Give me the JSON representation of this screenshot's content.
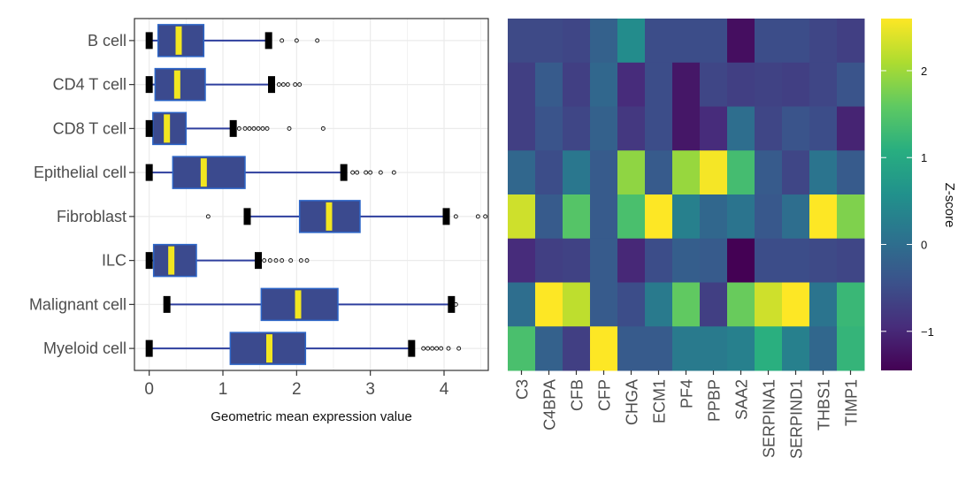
{
  "chart_data": [
    {
      "type": "boxplot",
      "orientation": "horizontal",
      "title": "",
      "xlabel": "Geometric mean expression value",
      "ylabel": "",
      "xlim": [
        -0.2,
        4.6
      ],
      "xticks": [
        0,
        1,
        2,
        3,
        4
      ],
      "categories": [
        "B cell",
        "CD4 T cell",
        "CD8 T cell",
        "Epithelial cell",
        "Fibroblast",
        "ILC",
        "Malignant cell",
        "Myeloid cell"
      ],
      "boxes": [
        {
          "category": "B cell",
          "whisker_low": 0.0,
          "q1": 0.12,
          "median": 0.4,
          "q3": 0.74,
          "whisker_high": 1.62,
          "outliers": [
            1.8,
            2.0,
            2.28
          ]
        },
        {
          "category": "CD4 T cell",
          "whisker_low": 0.0,
          "q1": 0.08,
          "median": 0.38,
          "q3": 0.76,
          "whisker_high": 1.66,
          "outliers": [
            1.76,
            1.82,
            1.88,
            1.98,
            2.04
          ]
        },
        {
          "category": "CD8 T cell",
          "whisker_low": 0.0,
          "q1": 0.05,
          "median": 0.24,
          "q3": 0.5,
          "whisker_high": 1.14,
          "outliers": [
            1.22,
            1.3,
            1.36,
            1.42,
            1.48,
            1.54,
            1.6,
            1.9,
            2.36
          ]
        },
        {
          "category": "Epithelial cell",
          "whisker_low": 0.0,
          "q1": 0.32,
          "median": 0.74,
          "q3": 1.3,
          "whisker_high": 2.64,
          "outliers": [
            2.76,
            2.82,
            2.94,
            3.0,
            3.14,
            3.32
          ]
        },
        {
          "category": "Fibroblast",
          "whisker_low": 1.33,
          "q1": 2.04,
          "median": 2.44,
          "q3": 2.86,
          "whisker_high": 4.03,
          "outliers": [
            0.8,
            4.16,
            4.46,
            4.56
          ]
        },
        {
          "category": "ILC",
          "whisker_low": 0.0,
          "q1": 0.06,
          "median": 0.3,
          "q3": 0.64,
          "whisker_high": 1.48,
          "outliers": [
            1.56,
            1.64,
            1.72,
            1.8,
            1.92,
            2.06,
            2.14
          ]
        },
        {
          "category": "Malignant cell",
          "whisker_low": 0.24,
          "q1": 1.52,
          "median": 2.02,
          "q3": 2.56,
          "whisker_high": 4.1,
          "outliers": [
            4.16
          ]
        },
        {
          "category": "Myeloid cell",
          "whisker_low": 0.0,
          "q1": 1.1,
          "median": 1.63,
          "q3": 2.12,
          "whisker_high": 3.56,
          "outliers": [
            3.72,
            3.78,
            3.84,
            3.9,
            3.96,
            4.06,
            4.2
          ]
        }
      ],
      "colors": {
        "box_fill": "#3b4a8e",
        "box_stroke": "#2c66c8",
        "median": "#f2e620",
        "whisker": "#2e3f9e",
        "cap": "#000000",
        "grid": "#ebebeb"
      }
    },
    {
      "type": "heatmap",
      "title": "",
      "rows": [
        "B cell",
        "CD4 T cell",
        "CD8 T cell",
        "Epithelial cell",
        "Fibroblast",
        "ILC",
        "Malignant cell",
        "Myeloid cell"
      ],
      "columns": [
        "C3",
        "C4BPA",
        "CFB",
        "CFP",
        "CHGA",
        "ECM1",
        "PF4",
        "PPBP",
        "SAA2",
        "SERPINA1",
        "SERPIND1",
        "THBS1",
        "TIMP1"
      ],
      "values": [
        [
          -0.55,
          -0.55,
          -0.6,
          -0.2,
          0.5,
          -0.5,
          -0.5,
          -0.5,
          -1.3,
          -0.5,
          -0.5,
          -0.6,
          -0.7
        ],
        [
          -0.7,
          -0.3,
          -0.7,
          -0.1,
          -0.95,
          -0.5,
          -1.2,
          -0.6,
          -0.7,
          -0.65,
          -0.7,
          -0.6,
          -0.4
        ],
        [
          -0.7,
          -0.4,
          -0.6,
          -0.2,
          -0.8,
          -0.5,
          -1.2,
          -0.95,
          0.0,
          -0.6,
          -0.4,
          -0.5,
          -1.05
        ],
        [
          -0.1,
          -0.5,
          0.15,
          -0.3,
          1.9,
          -0.3,
          1.95,
          2.55,
          1.35,
          -0.3,
          -0.6,
          0.1,
          -0.3
        ],
        [
          2.3,
          -0.3,
          1.5,
          -0.3,
          1.4,
          2.6,
          0.3,
          -0.1,
          0.1,
          -0.35,
          0.0,
          2.6,
          1.8
        ],
        [
          -0.95,
          -0.7,
          -0.65,
          -0.3,
          -1.0,
          -0.5,
          -0.25,
          -0.3,
          -1.45,
          -0.5,
          -0.5,
          -0.55,
          -0.6
        ],
        [
          0.0,
          2.65,
          2.2,
          -0.3,
          -0.5,
          0.2,
          1.6,
          -0.7,
          1.65,
          2.3,
          2.6,
          0.1,
          1.25
        ],
        [
          1.4,
          -0.2,
          -0.7,
          2.85,
          -0.3,
          -0.3,
          0.2,
          0.2,
          0.3,
          1.1,
          0.3,
          -0.1,
          1.2
        ]
      ],
      "zlim": [
        -1.45,
        2.6
      ],
      "colorbar": {
        "title": "Z-score",
        "ticks": [
          -1,
          0,
          1,
          2
        ],
        "tick_labels": [
          "−1",
          "0",
          "1",
          "2"
        ]
      },
      "colormap": "viridis"
    }
  ]
}
